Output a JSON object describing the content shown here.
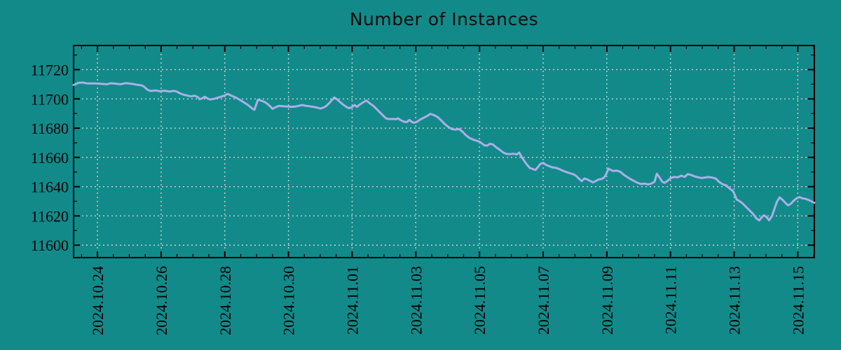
{
  "chart_data": {
    "type": "line",
    "title": "Number of Instances",
    "legend": "none",
    "grid": "dotted",
    "x_unit": "days since 2024-10-23 00:00",
    "xlim": [
      0.25,
      23.52
    ],
    "ylim": [
      11591.5,
      11736.5
    ],
    "y_ticks": [
      11720,
      11700,
      11680,
      11660,
      11640,
      11620,
      11600
    ],
    "y_minor_step": 10,
    "x_minor_step_days": 0.5,
    "x_ticks": [
      {
        "t": 1,
        "label": "2024.10.24"
      },
      {
        "t": 3,
        "label": "2024.10.26"
      },
      {
        "t": 5,
        "label": "2024.10.28"
      },
      {
        "t": 7,
        "label": "2024.10.30"
      },
      {
        "t": 9,
        "label": "2024.11.01"
      },
      {
        "t": 11,
        "label": "2024.11.03"
      },
      {
        "t": 13,
        "label": "2024.11.05"
      },
      {
        "t": 15,
        "label": "2024.11.07"
      },
      {
        "t": 17,
        "label": "2024.11.09"
      },
      {
        "t": 19,
        "label": "2024.11.11"
      },
      {
        "t": 21,
        "label": "2024.11.13"
      },
      {
        "t": 23,
        "label": "2024.11.15"
      }
    ],
    "series": [
      {
        "name": "instances",
        "t": [
          0.25,
          0.41,
          0.54,
          0.69,
          0.91,
          1.13,
          1.29,
          1.42,
          1.57,
          1.73,
          1.9,
          2.08,
          2.23,
          2.39,
          2.47,
          2.56,
          2.67,
          2.83,
          2.96,
          3.11,
          3.27,
          3.4,
          3.49,
          3.6,
          3.71,
          3.84,
          3.93,
          4.06,
          4.15,
          4.21,
          4.28,
          4.37,
          4.46,
          4.54,
          4.65,
          4.76,
          4.87,
          4.99,
          5.09,
          5.2,
          5.34,
          5.47,
          5.6,
          5.73,
          5.84,
          5.93,
          6.04,
          6.09,
          6.17,
          6.26,
          6.35,
          6.44,
          6.5,
          6.59,
          6.7,
          6.83,
          6.97,
          7.1,
          7.23,
          7.34,
          7.43,
          7.54,
          7.65,
          7.78,
          7.89,
          8.0,
          8.09,
          8.18,
          8.29,
          8.38,
          8.44,
          8.53,
          8.62,
          8.71,
          8.82,
          8.9,
          8.99,
          9.08,
          9.15,
          9.23,
          9.34,
          9.45,
          9.56,
          9.67,
          9.78,
          9.89,
          10.0,
          10.07,
          10.16,
          10.27,
          10.38,
          10.44,
          10.53,
          10.62,
          10.71,
          10.8,
          10.88,
          10.95,
          11.04,
          11.15,
          11.26,
          11.37,
          11.46,
          11.57,
          11.68,
          11.79,
          11.9,
          12.01,
          12.14,
          12.25,
          12.36,
          12.47,
          12.58,
          12.69,
          12.8,
          12.91,
          13.02,
          13.15,
          13.24,
          13.33,
          13.42,
          13.53,
          13.64,
          13.75,
          13.84,
          13.95,
          14.06,
          14.17,
          14.25,
          14.32,
          14.41,
          14.5,
          14.58,
          14.67,
          14.76,
          14.85,
          14.91,
          15.0,
          15.09,
          15.18,
          15.29,
          15.4,
          15.51,
          15.62,
          15.73,
          15.84,
          15.95,
          16.04,
          16.13,
          16.21,
          16.3,
          16.39,
          16.48,
          16.57,
          16.65,
          16.74,
          16.83,
          16.92,
          16.98,
          17.05,
          17.11,
          17.2,
          17.31,
          17.42,
          17.53,
          17.64,
          17.75,
          17.86,
          17.97,
          18.08,
          18.19,
          18.3,
          18.41,
          18.5,
          18.57,
          18.66,
          18.74,
          18.81,
          18.9,
          19.01,
          19.12,
          19.23,
          19.34,
          19.45,
          19.54,
          19.65,
          19.76,
          19.87,
          19.98,
          20.09,
          20.2,
          20.31,
          20.42,
          20.53,
          20.64,
          20.75,
          20.86,
          20.97,
          21.08,
          21.17,
          21.26,
          21.37,
          21.48,
          21.59,
          21.7,
          21.79,
          21.88,
          21.94,
          22.03,
          22.1,
          22.19,
          22.27,
          22.34,
          22.43,
          22.52,
          22.61,
          22.69,
          22.78,
          22.87,
          22.96,
          23.05,
          23.14,
          23.25,
          23.36,
          23.45,
          23.52
        ],
        "v": [
          11709.5,
          11711.0,
          11711.2,
          11710.5,
          11710.6,
          11710.3,
          11710.0,
          11710.7,
          11710.4,
          11710.0,
          11710.8,
          11710.3,
          11709.7,
          11709.2,
          11708.3,
          11706.4,
          11705.4,
          11705.8,
          11705.2,
          11705.6,
          11705.0,
          11705.5,
          11705.0,
          11703.7,
          11702.8,
          11702.2,
          11701.7,
          11702.2,
          11701.2,
          11699.8,
          11700.3,
          11701.4,
          11700.3,
          11699.6,
          11700.0,
          11700.7,
          11701.4,
          11702.3,
          11703.5,
          11702.3,
          11701.0,
          11699.4,
          11697.6,
          11695.8,
          11693.8,
          11692.5,
          11699.4,
          11699.1,
          11698.6,
          11697.8,
          11696.4,
          11694.6,
          11693.2,
          11694.3,
          11695.2,
          11695.0,
          11694.8,
          11694.6,
          11694.8,
          11695.4,
          11695.8,
          11695.3,
          11695.0,
          11694.6,
          11694.1,
          11693.4,
          11694.0,
          11695.0,
          11697.3,
          11699.5,
          11701.0,
          11699.6,
          11697.9,
          11696.2,
          11694.5,
          11693.6,
          11694.3,
          11695.8,
          11694.6,
          11696.0,
          11697.5,
          11698.9,
          11696.9,
          11695.2,
          11692.8,
          11690.4,
          11688.0,
          11686.6,
          11686.2,
          11686.3,
          11686.1,
          11686.7,
          11685.4,
          11684.5,
          11684.1,
          11685.6,
          11684.2,
          11683.7,
          11684.4,
          11686.0,
          11687.2,
          11688.5,
          11689.8,
          11688.9,
          11687.7,
          11685.5,
          11683.0,
          11681.0,
          11679.3,
          11679.0,
          11679.4,
          11677.5,
          11675.0,
          11673.2,
          11672.2,
          11671.4,
          11670.5,
          11668.3,
          11668.0,
          11669.3,
          11668.9,
          11666.8,
          11665.2,
          11663.3,
          11662.4,
          11662.2,
          11662.5,
          11662.1,
          11663.3,
          11660.4,
          11657.5,
          11654.8,
          11652.8,
          11652.1,
          11651.4,
          11653.8,
          11655.5,
          11656.3,
          11654.9,
          11654.1,
          11653.2,
          11652.9,
          11652.0,
          11650.9,
          11650.0,
          11649.2,
          11648.5,
          11647.3,
          11645.4,
          11643.8,
          11645.6,
          11644.9,
          11643.9,
          11642.9,
          11643.8,
          11644.9,
          11645.2,
          11646.3,
          11648.5,
          11652.3,
          11651.6,
          11650.7,
          11651.0,
          11650.2,
          11648.2,
          11646.6,
          11645.1,
          11643.8,
          11642.6,
          11641.8,
          11642.1,
          11641.5,
          11642.2,
          11643.4,
          11648.9,
          11646.2,
          11643.4,
          11642.6,
          11643.8,
          11645.9,
          11646.7,
          11646.4,
          11647.5,
          11646.7,
          11648.6,
          11648.0,
          11647.0,
          11646.4,
          11645.9,
          11646.3,
          11646.6,
          11646.2,
          11645.6,
          11643.2,
          11641.6,
          11640.9,
          11638.7,
          11636.8,
          11631.2,
          11630.0,
          11628.7,
          11626.3,
          11623.9,
          11621.5,
          11618.3,
          11616.9,
          11619.4,
          11620.4,
          11618.9,
          11617.0,
          11620.0,
          11625.0,
          11629.5,
          11632.7,
          11631.0,
          11628.9,
          11627.2,
          11628.3,
          11630.4,
          11632.0,
          11632.9,
          11632.1,
          11631.6,
          11630.7,
          11629.7,
          11629.0
        ]
      }
    ],
    "colors": {
      "background": "#128A8A",
      "line": "#ABAFE8",
      "grid": "#CBCFCB",
      "axis": "#000000",
      "text": "#000000"
    }
  }
}
